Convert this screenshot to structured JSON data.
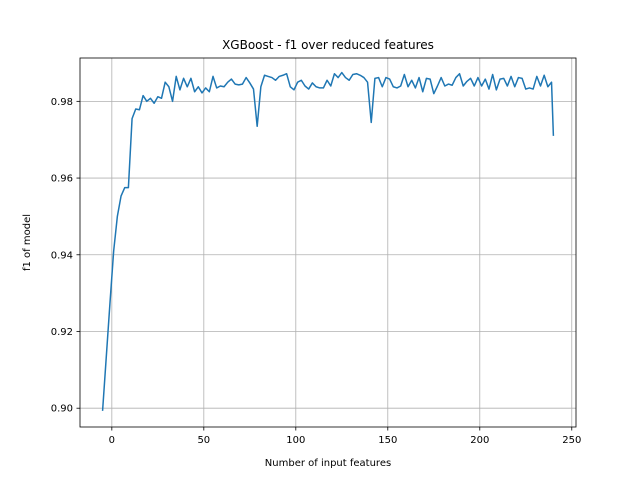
{
  "chart_data": {
    "type": "line",
    "title": "XGBoost - f1 over reduced features",
    "xlabel": "Number of input features",
    "ylabel": "f1 of model",
    "xlim": [
      -17.3,
      252.3
    ],
    "ylim": [
      0.8951,
      0.9913
    ],
    "xticks": [
      0,
      50,
      100,
      150,
      200,
      250
    ],
    "yticks": [
      0.9,
      0.92,
      0.94,
      0.96,
      0.98
    ],
    "ytick_labels": [
      "0.90",
      "0.92",
      "0.94",
      "0.96",
      "0.98"
    ],
    "grid": true,
    "line_color": "#1f77b4",
    "series": [
      {
        "x": [
          -5,
          -3,
          -1,
          1,
          3,
          5,
          7,
          9,
          11,
          13,
          15,
          17,
          19,
          21,
          23,
          25,
          27,
          29,
          31,
          33,
          35,
          37,
          39,
          41,
          43,
          45,
          47,
          49,
          51,
          53,
          55,
          57,
          59,
          61,
          63,
          65,
          67,
          69,
          71,
          73,
          75,
          77,
          79,
          81,
          83,
          85,
          87,
          89,
          91,
          93,
          95,
          97,
          99,
          101,
          103,
          105,
          107,
          109,
          111,
          113,
          115,
          117,
          119,
          121,
          123,
          125,
          127,
          129,
          131,
          133,
          135,
          137,
          139,
          141,
          143,
          145,
          147,
          149,
          151,
          153,
          155,
          157,
          159,
          161,
          163,
          165,
          167,
          169,
          171,
          173,
          175,
          177,
          179,
          181,
          183,
          185,
          187,
          189,
          191,
          193,
          195,
          197,
          199,
          201,
          203,
          205,
          207,
          209,
          211,
          213,
          215,
          217,
          219,
          221,
          223,
          225,
          227,
          229,
          231,
          233,
          235,
          237,
          239,
          240
        ],
        "y": [
          0.8995,
          0.9135,
          0.9275,
          0.941,
          0.95,
          0.9553,
          0.9575,
          0.9575,
          0.9755,
          0.978,
          0.9778,
          0.9815,
          0.98,
          0.9808,
          0.9795,
          0.9812,
          0.9808,
          0.985,
          0.9838,
          0.98,
          0.9865,
          0.983,
          0.986,
          0.9838,
          0.986,
          0.9825,
          0.9838,
          0.9822,
          0.9835,
          0.9825,
          0.9865,
          0.9835,
          0.984,
          0.9838,
          0.985,
          0.9858,
          0.9845,
          0.9843,
          0.9845,
          0.9862,
          0.9848,
          0.9832,
          0.9735,
          0.9838,
          0.9868,
          0.9865,
          0.9862,
          0.9855,
          0.9865,
          0.9868,
          0.9872,
          0.9838,
          0.983,
          0.985,
          0.9855,
          0.984,
          0.9832,
          0.9848,
          0.9838,
          0.9835,
          0.9835,
          0.9855,
          0.984,
          0.9872,
          0.9862,
          0.9875,
          0.9862,
          0.9855,
          0.987,
          0.9872,
          0.9868,
          0.9862,
          0.985,
          0.9745,
          0.986,
          0.9862,
          0.9838,
          0.9862,
          0.9858,
          0.9838,
          0.9835,
          0.984,
          0.987,
          0.9838,
          0.9855,
          0.9835,
          0.9862,
          0.9825,
          0.986,
          0.9858,
          0.982,
          0.984,
          0.9862,
          0.984,
          0.9845,
          0.9842,
          0.9862,
          0.9872,
          0.984,
          0.9852,
          0.986,
          0.984,
          0.9862,
          0.984,
          0.9858,
          0.9832,
          0.987,
          0.983,
          0.9858,
          0.986,
          0.984,
          0.9865,
          0.9838,
          0.9862,
          0.986,
          0.9832,
          0.9835,
          0.9832,
          0.9865,
          0.984,
          0.9868,
          0.9838,
          0.985,
          0.9712
        ]
      }
    ]
  }
}
